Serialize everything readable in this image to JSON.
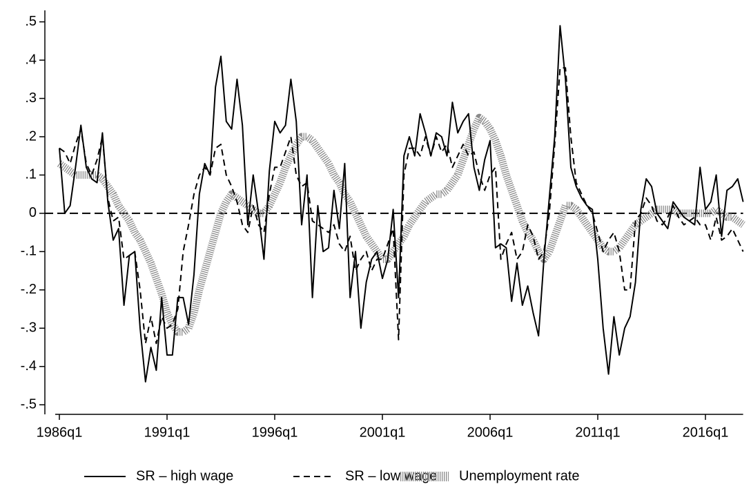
{
  "chart_data": {
    "type": "line",
    "categories": [
      "1986q1",
      null,
      null,
      null,
      null,
      null,
      null,
      null,
      null,
      null,
      null,
      null,
      null,
      null,
      null,
      null,
      null,
      null,
      null,
      null,
      "1991q1",
      null,
      null,
      null,
      null,
      null,
      null,
      null,
      null,
      null,
      null,
      null,
      null,
      null,
      null,
      null,
      null,
      null,
      null,
      null,
      "1996q1",
      null,
      null,
      null,
      null,
      null,
      null,
      null,
      null,
      null,
      null,
      null,
      null,
      null,
      null,
      null,
      null,
      null,
      null,
      null,
      "2001q1",
      null,
      null,
      null,
      null,
      null,
      null,
      null,
      null,
      null,
      null,
      null,
      null,
      null,
      null,
      null,
      null,
      null,
      null,
      null,
      "2006q1",
      null,
      null,
      null,
      null,
      null,
      null,
      null,
      null,
      null,
      null,
      null,
      null,
      null,
      null,
      null,
      null,
      null,
      null,
      null,
      "2011q1",
      null,
      null,
      null,
      null,
      null,
      null,
      null,
      null,
      null,
      null,
      null,
      null,
      null,
      null,
      null,
      null,
      null,
      null,
      null,
      "2016q1",
      null,
      null,
      null,
      null,
      null,
      null,
      null
    ],
    "series": [
      {
        "name": "SR – high wage",
        "color": "#000000",
        "style": "solid",
        "values": [
          0.17,
          0,
          0.02,
          0.12,
          0.23,
          0.12,
          0.09,
          0.08,
          0.21,
          0.03,
          -0.07,
          -0.04,
          -0.24,
          -0.11,
          -0.1,
          -0.3,
          -0.44,
          -0.35,
          -0.41,
          -0.22,
          -0.37,
          -0.37,
          -0.22,
          -0.22,
          -0.29,
          -0.16,
          0.05,
          0.13,
          0.1,
          0.33,
          0.41,
          0.24,
          0.22,
          0.35,
          0.23,
          -0.03,
          0.1,
          0,
          -0.12,
          0.11,
          0.24,
          0.21,
          0.23,
          0.35,
          0.24,
          -0.03,
          0.1,
          -0.22,
          0.02,
          -0.1,
          -0.09,
          0.06,
          -0.04,
          0.13,
          -0.22,
          -0.1,
          -0.3,
          -0.18,
          -0.12,
          -0.1,
          -0.17,
          -0.12,
          0.01,
          -0.22,
          0.15,
          0.2,
          0.15,
          0.26,
          0.21,
          0.15,
          0.21,
          0.2,
          0.15,
          0.29,
          0.21,
          0.24,
          0.26,
          0.12,
          0.06,
          0.14,
          0.19,
          -0.09,
          -0.08,
          -0.09,
          -0.23,
          -0.13,
          -0.24,
          -0.19,
          -0.26,
          -0.32,
          -0.12,
          0.04,
          0.2,
          0.49,
          0.35,
          0.12,
          0.07,
          0.04,
          0.02,
          0.01,
          -0.12,
          -0.3,
          -0.42,
          -0.27,
          -0.37,
          -0.3,
          -0.27,
          -0.18,
          0.01,
          0.09,
          0.07,
          0,
          -0.02,
          -0.04,
          0.03,
          0.01,
          -0.01,
          -0.02,
          -0.03,
          0.12,
          0.01,
          0.03,
          0.1,
          -0.06,
          0.06,
          0.07,
          0.09,
          0.03
        ]
      },
      {
        "name": "SR – low wage",
        "color": "#000000",
        "style": "dashed",
        "values": [
          0.17,
          0.16,
          0.13,
          0.18,
          0.22,
          0.13,
          0.1,
          0.14,
          0.2,
          0.04,
          -0.02,
          -0.01,
          -0.12,
          -0.11,
          -0.1,
          -0.2,
          -0.34,
          -0.27,
          -0.34,
          -0.27,
          -0.3,
          -0.29,
          -0.25,
          -0.1,
          -0.03,
          0.05,
          0.1,
          0.12,
          0.1,
          0.17,
          0.18,
          0.1,
          0.07,
          0.03,
          -0.03,
          -0.05,
          0.02,
          -0.03,
          -0.05,
          0.05,
          0.12,
          0.12,
          0.16,
          0.2,
          0.1,
          0.07,
          0.08,
          -0.02,
          -0.03,
          -0.04,
          -0.05,
          -0.03,
          -0.08,
          -0.1,
          -0.06,
          -0.15,
          -0.12,
          -0.1,
          -0.15,
          -0.12,
          -0.12,
          -0.08,
          -0.04,
          -0.33,
          0.1,
          0.17,
          0.17,
          0.15,
          0.2,
          0.15,
          0.2,
          0.16,
          0.18,
          0.12,
          0.15,
          0.18,
          0.15,
          0.16,
          0.1,
          0.06,
          0.1,
          0.12,
          -0.12,
          -0.08,
          -0.05,
          -0.12,
          -0.1,
          -0.03,
          -0.06,
          -0.12,
          -0.1,
          0,
          0.18,
          0.38,
          0.38,
          0.2,
          0.08,
          0.05,
          0.02,
          0,
          -0.05,
          -0.1,
          -0.07,
          -0.05,
          -0.1,
          -0.2,
          -0.2,
          -0.02,
          0,
          0.04,
          0.02,
          -0.02,
          -0.03,
          -0.01,
          0.02,
          -0.01,
          -0.03,
          -0.02,
          -0.01,
          -0.03,
          -0.03,
          -0.07,
          -0.01,
          -0.07,
          -0.06,
          -0.04,
          -0.07,
          -0.1
        ]
      },
      {
        "name": "Unemployment rate",
        "color": "#8a8a8a",
        "style": "hatched",
        "values": [
          0.13,
          0.12,
          0.11,
          0.1,
          0.1,
          0.1,
          0.1,
          0.1,
          0.09,
          0.07,
          0.05,
          0.02,
          0,
          -0.02,
          -0.05,
          -0.07,
          -0.1,
          -0.13,
          -0.17,
          -0.21,
          -0.26,
          -0.29,
          -0.31,
          -0.31,
          -0.3,
          -0.26,
          -0.2,
          -0.15,
          -0.1,
          -0.05,
          0,
          0.03,
          0.05,
          0.04,
          0.03,
          0.02,
          0.01,
          0,
          0,
          0.02,
          0.05,
          0.08,
          0.12,
          0.15,
          0.18,
          0.2,
          0.2,
          0.19,
          0.17,
          0.15,
          0.13,
          0.1,
          0.08,
          0.05,
          0.03,
          0,
          -0.03,
          -0.06,
          -0.08,
          -0.1,
          -0.12,
          -0.12,
          -0.1,
          -0.08,
          -0.06,
          -0.03,
          -0.01,
          0.01,
          0.03,
          0.04,
          0.05,
          0.05,
          0.06,
          0.08,
          0.1,
          0.14,
          0.18,
          0.22,
          0.25,
          0.24,
          0.22,
          0.19,
          0.15,
          0.1,
          0.06,
          0.02,
          -0.02,
          -0.05,
          -0.07,
          -0.1,
          -0.12,
          -0.1,
          -0.06,
          -0.02,
          0.02,
          0.02,
          0.01,
          -0.01,
          -0.03,
          -0.05,
          -0.07,
          -0.09,
          -0.1,
          -0.1,
          -0.09,
          -0.07,
          -0.05,
          -0.03,
          -0.02,
          -0.01,
          0,
          0.01,
          0.01,
          0.01,
          0.01,
          0,
          0,
          0,
          0,
          0,
          0,
          0,
          0.01,
          0,
          -0.01,
          -0.01,
          -0.02,
          -0.03
        ]
      }
    ],
    "ylim": [
      -0.525,
      0.53
    ],
    "yticks": [
      {
        "value": 0.5,
        "label": ".5"
      },
      {
        "value": 0.4,
        "label": ".4"
      },
      {
        "value": 0.3,
        "label": ".3"
      },
      {
        "value": 0.2,
        "label": ".2"
      },
      {
        "value": 0.1,
        "label": ".1"
      },
      0,
      {
        "value": -0.1,
        "label": "-.1"
      },
      {
        "value": -0.2,
        "label": "-.2"
      },
      {
        "value": -0.3,
        "label": "-.3"
      },
      {
        "value": -0.4,
        "label": "-.4"
      },
      {
        "value": -0.5,
        "label": "-.5"
      }
    ],
    "hline": 0,
    "grid": false,
    "legend": "bottom"
  }
}
